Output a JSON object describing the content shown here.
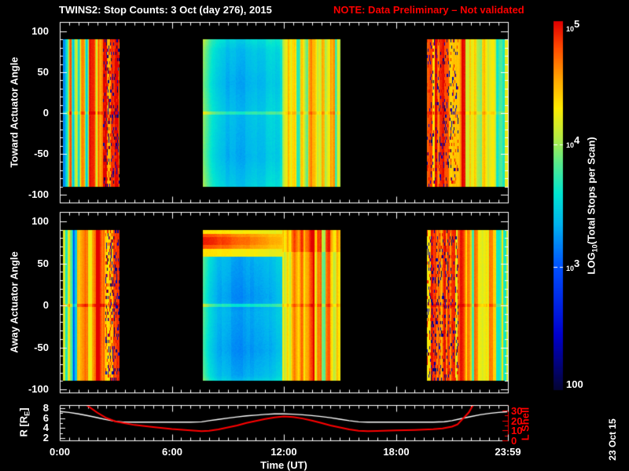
{
  "title": {
    "text": "TWINS2: Stop Counts:  3 Oct (day 276), 2015",
    "note": "NOTE: Data Preliminary – Not validated"
  },
  "date_stamp": "23 Oct 15",
  "colors": {
    "background": "#000000",
    "axis": "#ffffff",
    "title": "#ffffff",
    "note": "#ff0000",
    "r_line": "#ffffff",
    "l_shell": "#ff0000",
    "date_stamp": "#ffffff"
  },
  "time_axis": {
    "label": "Time (UT)",
    "ticks": [
      {
        "hour": 0,
        "label": "0:00"
      },
      {
        "hour": 6,
        "label": "6:00"
      },
      {
        "hour": 12,
        "label": "12:00"
      },
      {
        "hour": 18,
        "label": "18:00"
      },
      {
        "hour": 23.983,
        "label": "23:59"
      }
    ]
  },
  "colorbar": {
    "label_prefix": "LOG",
    "label_sub": "10",
    "label_suffix": "(Total Stops per Scan)",
    "value_range_log10": [
      2,
      5
    ],
    "ticks": [
      {
        "base": "10",
        "sup": "5",
        "frac": 1.0
      },
      {
        "base": "10",
        "sup": "4",
        "frac": 0.667
      },
      {
        "base": "10",
        "sup": "3",
        "frac": 0.333
      },
      {
        "base": "100",
        "sup": "",
        "frac": 0.0
      }
    ],
    "colormap": [
      {
        "v": 2.0,
        "c": "#050532"
      },
      {
        "v": 2.45,
        "c": "#0000cd"
      },
      {
        "v": 3.0,
        "c": "#0050ff"
      },
      {
        "v": 3.35,
        "c": "#00b4f0"
      },
      {
        "v": 3.6,
        "c": "#00e6d2"
      },
      {
        "v": 3.85,
        "c": "#5aeb8c"
      },
      {
        "v": 4.05,
        "c": "#b4eb46"
      },
      {
        "v": 4.3,
        "c": "#ffeb00"
      },
      {
        "v": 4.55,
        "c": "#ffa000"
      },
      {
        "v": 4.8,
        "c": "#ff4600"
      },
      {
        "v": 5.0,
        "c": "#e10000"
      }
    ]
  },
  "chart_data": [
    {
      "type": "heatmap",
      "ylabel": "Toward Actuator Angle",
      "y_range": [
        -100,
        100
      ],
      "y_ticks": [
        100,
        50,
        0,
        -50,
        -100
      ],
      "data_angle_extent": [
        -90,
        90
      ],
      "x_range_hours": [
        0,
        24
      ],
      "units": "log10 total stops per scan",
      "segments": [
        {
          "t_range": [
            0.15,
            3.2
          ],
          "type": "striped",
          "noise": 0.45,
          "columns": [
            3.5,
            3.4,
            3.6,
            4.15,
            4.4,
            3.5,
            4.35,
            4.5,
            3.7,
            4.5,
            4.6,
            4.45,
            3.6,
            4.5,
            4.65,
            4.45,
            4.55,
            3.8,
            4.6,
            4.5,
            4.65,
            4.55,
            4.7,
            4.6,
            4.5,
            4.7,
            4.6,
            4.75,
            4.65,
            4.7
          ],
          "fragment": {
            "u_range": [
              0.7,
              1.0
            ],
            "chance": 0.3
          },
          "zero_line": {
            "delta": 0.2,
            "half_width_deg": 1.5
          }
        },
        {
          "t_range": [
            7.66,
            11.9
          ],
          "type": "smooth",
          "noise": 0.05,
          "columns": [
            3.95,
            3.7,
            3.5,
            3.42,
            3.38,
            3.36,
            3.35,
            3.36,
            3.38,
            3.4,
            3.43,
            3.47,
            3.52,
            3.56
          ],
          "profile": [
            [
              0,
              0.14
            ],
            [
              0.07,
              0.03
            ],
            [
              0.3,
              -0.05
            ],
            [
              0.5,
              0.02
            ],
            [
              0.8,
              -0.04
            ],
            [
              1,
              0.07
            ]
          ],
          "zero_line": {
            "delta": 0.3,
            "half_width_deg": 1.5
          }
        },
        {
          "t_range": [
            11.9,
            15.05
          ],
          "type": "striped",
          "noise": 0.3,
          "columns": [
            4.05,
            4.3,
            3.9,
            4.45,
            4.2,
            4.5,
            3.95,
            4.4,
            4.55,
            4.1,
            4.45,
            4.3,
            4.6,
            4.2,
            4.4,
            4.05
          ],
          "zero_line": {
            "delta": 0.12,
            "half_width_deg": 1.5
          }
        },
        {
          "t_range": [
            19.66,
            24
          ],
          "type": "striped",
          "noise": 0.38,
          "columns": [
            4.55,
            4.7,
            4.6,
            4.75,
            4.5,
            4.65,
            4.7,
            4.5,
            4.6,
            4.45,
            4.55,
            4.4,
            4.5,
            4.35,
            4.45,
            4.3,
            4.2,
            4.35,
            4.05,
            3.95,
            4.0,
            3.9,
            3.95,
            3.85,
            3.9
          ],
          "fragment": {
            "u_range": [
              0,
              0.38
            ],
            "chance": 0.2
          },
          "zero_line": {
            "delta": 0.12,
            "half_width_deg": 1.5
          }
        }
      ]
    },
    {
      "type": "heatmap",
      "ylabel": "Away Actuator Angle",
      "y_range": [
        -100,
        100
      ],
      "y_ticks": [
        100,
        50,
        0,
        -50,
        -100
      ],
      "data_angle_extent": [
        -90,
        90
      ],
      "x_range_hours": [
        0,
        24
      ],
      "units": "log10 total stops per scan",
      "segments": [
        {
          "t_range": [
            0.15,
            3.2
          ],
          "type": "striped",
          "noise": 0.42,
          "columns": [
            3.45,
            3.5,
            3.55,
            3.95,
            4.1,
            3.6,
            4.2,
            4.35,
            4.3,
            4.45,
            4.4,
            4.5,
            4.35,
            4.5,
            4.55,
            4.45,
            4.6,
            4.65,
            4.55,
            4.7,
            4.6,
            4.75,
            4.65,
            4.7,
            4.75,
            4.7,
            4.8,
            4.7,
            4.65,
            4.7
          ],
          "fragment": {
            "u_range": [
              0.75,
              1.0
            ],
            "chance": 0.35
          },
          "zero_line": {
            "delta": 0.25,
            "half_width_deg": 1.5
          }
        },
        {
          "t_range": [
            7.66,
            11.9
          ],
          "type": "smooth",
          "noise": 0.05,
          "columns": [
            3.9,
            3.6,
            3.45,
            3.4,
            3.36,
            3.33,
            3.3,
            3.3,
            3.32,
            3.35,
            3.38,
            3.42,
            3.46,
            3.5
          ],
          "profile": [
            [
              0,
              0.05
            ],
            [
              0.25,
              -0.03
            ],
            [
              0.45,
              -0.1
            ],
            [
              0.55,
              -0.02
            ],
            [
              0.8,
              -0.09
            ],
            [
              0.97,
              0.0
            ],
            [
              1,
              0.1
            ]
          ],
          "bands": [
            {
              "a_range": [
                58,
                90
              ],
              "value": [
                4.35,
                4.2
              ]
            },
            {
              "a_range": [
                68,
                86
              ],
              "value": [
                4.8,
                4.4
              ]
            },
            {
              "a_range": [
                73,
                82
              ],
              "value": [
                4.95,
                4.45
              ]
            }
          ],
          "zero_line": {
            "delta": 0.35,
            "half_width_deg": 1.5
          }
        },
        {
          "t_range": [
            11.9,
            15.05
          ],
          "type": "striped",
          "noise": 0.3,
          "columns": [
            4.1,
            4.35,
            3.95,
            4.5,
            4.25,
            4.55,
            4.0,
            4.45,
            4.6,
            4.15,
            4.5,
            4.35,
            4.62,
            4.25,
            4.45,
            4.1
          ],
          "bands": [
            {
              "a_range": [
                64,
                90
              ],
              "delta": 0.18
            }
          ],
          "zero_line": {
            "delta": 0.15,
            "half_width_deg": 1.5
          }
        },
        {
          "t_range": [
            19.66,
            24
          ],
          "type": "striped",
          "noise": 0.38,
          "columns": [
            4.6,
            4.75,
            4.65,
            4.8,
            4.55,
            4.7,
            4.75,
            4.55,
            4.65,
            4.5,
            4.6,
            4.45,
            4.55,
            4.4,
            4.5,
            4.35,
            4.25,
            4.4,
            4.1,
            4.0,
            4.05,
            3.95,
            4.0,
            3.9,
            3.95
          ],
          "fragment": {
            "u_range": [
              0,
              0.38
            ],
            "chance": 0.24
          },
          "zero_line": {
            "delta": 0.15,
            "half_width_deg": 1.5
          }
        }
      ]
    },
    {
      "type": "line",
      "x_range_hours": [
        0,
        24
      ],
      "left_axis": {
        "label_prefix": "R [R",
        "label_sub": "E",
        "label_suffix": "]",
        "ticks": [
          8,
          6,
          4,
          2
        ],
        "range": [
          1.3,
          8.65
        ]
      },
      "right_axis": {
        "label": "L Shell",
        "ticks": [
          30,
          20,
          10,
          0
        ],
        "range": [
          0,
          35.5
        ]
      },
      "series": [
        {
          "name": "R",
          "color": "#ffffff",
          "axis": "left",
          "points": [
            [
              0,
              7.35
            ],
            [
              0.5,
              7.15
            ],
            [
              1,
              6.85
            ],
            [
              1.5,
              6.5
            ],
            [
              2,
              6.1
            ],
            [
              2.5,
              5.7
            ],
            [
              3,
              5.35
            ],
            [
              3.4,
              5.22
            ],
            [
              4,
              5.2
            ],
            [
              5,
              5.2
            ],
            [
              6,
              5.2
            ],
            [
              7,
              5.2
            ],
            [
              7.6,
              5.25
            ],
            [
              8,
              5.5
            ],
            [
              8.5,
              5.75
            ],
            [
              9,
              6.0
            ],
            [
              9.5,
              6.25
            ],
            [
              10,
              6.45
            ],
            [
              10.5,
              6.6
            ],
            [
              11,
              6.75
            ],
            [
              11.5,
              6.85
            ],
            [
              12,
              6.85
            ],
            [
              12.5,
              6.8
            ],
            [
              13,
              6.68
            ],
            [
              13.5,
              6.52
            ],
            [
              14,
              6.32
            ],
            [
              14.5,
              6.08
            ],
            [
              15,
              5.8
            ],
            [
              15.5,
              5.5
            ],
            [
              16,
              5.25
            ],
            [
              16.5,
              5.2
            ],
            [
              17,
              5.2
            ],
            [
              18,
              5.2
            ],
            [
              19,
              5.2
            ],
            [
              20,
              5.2
            ],
            [
              20.6,
              5.28
            ],
            [
              21,
              5.5
            ],
            [
              21.5,
              5.9
            ],
            [
              22,
              6.3
            ],
            [
              22.5,
              6.68
            ],
            [
              23,
              6.95
            ],
            [
              23.5,
              7.15
            ],
            [
              24,
              7.3
            ]
          ]
        },
        {
          "name": "L Shell",
          "color": "#ff0000",
          "axis": "right",
          "points": [
            [
              1.4,
              36
            ],
            [
              2,
              28
            ],
            [
              2.5,
              22.5
            ],
            [
              3,
              19
            ],
            [
              3.4,
              17.5
            ],
            [
              4,
              15.5
            ],
            [
              5,
              13.5
            ],
            [
              6,
              11.5
            ],
            [
              7,
              10
            ],
            [
              7.6,
              9.2
            ],
            [
              8,
              9.6
            ],
            [
              8.5,
              11
            ],
            [
              9,
              13
            ],
            [
              9.5,
              15
            ],
            [
              10,
              17.5
            ],
            [
              10.5,
              19.5
            ],
            [
              11,
              21.5
            ],
            [
              11.5,
              23
            ],
            [
              12,
              24
            ],
            [
              12.5,
              23.5
            ],
            [
              13,
              22
            ],
            [
              13.5,
              20
            ],
            [
              14,
              17.5
            ],
            [
              14.5,
              15
            ],
            [
              15,
              13
            ],
            [
              15.5,
              11
            ],
            [
              16,
              9.7
            ],
            [
              16.5,
              9.3
            ],
            [
              17,
              9.5
            ],
            [
              18,
              10
            ],
            [
              19,
              10.5
            ],
            [
              20,
              11.2
            ],
            [
              20.5,
              12
            ],
            [
              21,
              13.8
            ],
            [
              21.3,
              16
            ],
            [
              21.6,
              22
            ],
            [
              21.9,
              28
            ],
            [
              22.15,
              36
            ]
          ]
        }
      ]
    }
  ]
}
